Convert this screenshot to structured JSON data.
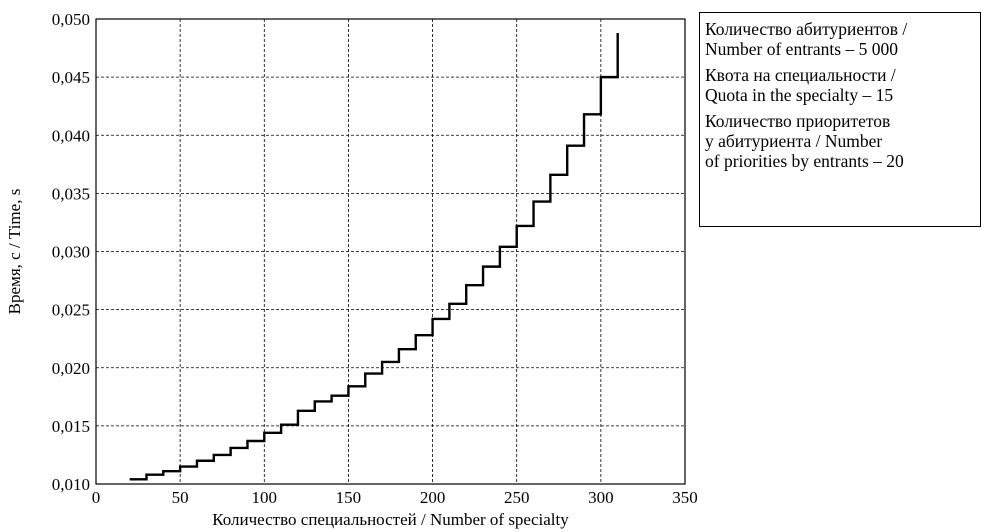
{
  "chart_data": {
    "type": "line",
    "line_style": "step",
    "xlabel": "Количество специальностей / Number of specialty",
    "ylabel": "Время, с / Time, s",
    "xlim": [
      0,
      350
    ],
    "ylim": [
      0.01,
      0.05
    ],
    "x_ticks": [
      "0",
      "50",
      "100",
      "150",
      "200",
      "250",
      "300",
      "350"
    ],
    "y_ticks": [
      "0,010",
      "0,015",
      "0,020",
      "0,025",
      "0,030",
      "0,035",
      "0,040",
      "0,045",
      "0,050"
    ],
    "grid": true,
    "grid_style": "dashed",
    "legend_placement": "right-top-outside",
    "series_color": "#000000",
    "series": [
      {
        "x": [
          20,
          30,
          40,
          50,
          60,
          70,
          80,
          90,
          100,
          110,
          120,
          130,
          140,
          150,
          160,
          170,
          180,
          190,
          200,
          210,
          220,
          230,
          240,
          250,
          260,
          270,
          280,
          290,
          300,
          310
        ],
        "values": [
          0.0104,
          0.0108,
          0.0111,
          0.0115,
          0.012,
          0.0125,
          0.0131,
          0.0137,
          0.0144,
          0.0151,
          0.0163,
          0.0171,
          0.0176,
          0.0184,
          0.0195,
          0.0205,
          0.0216,
          0.0228,
          0.0242,
          0.0255,
          0.0271,
          0.0287,
          0.0304,
          0.0322,
          0.0343,
          0.0366,
          0.0391,
          0.0418,
          0.045,
          0.0488
        ]
      }
    ]
  },
  "legend": {
    "entries": [
      "Количество абитуриентов /\nNumber of entrants – 5 000",
      "Квота на специальности /\nQuota in the specialty – 15",
      "Количество приоритетов\nу абитуриента / Number\nof priorities by entrants – 20"
    ]
  }
}
